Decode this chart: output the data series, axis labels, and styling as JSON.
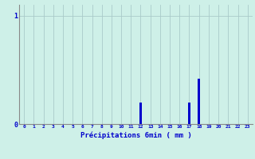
{
  "hours": [
    0,
    1,
    2,
    3,
    4,
    5,
    6,
    7,
    8,
    9,
    10,
    11,
    12,
    13,
    14,
    15,
    16,
    17,
    18,
    19,
    20,
    21,
    22,
    23
  ],
  "values": [
    0,
    0,
    0,
    0,
    0,
    0,
    0,
    0,
    0,
    0,
    0,
    0,
    0.2,
    0,
    0,
    0,
    0,
    0.2,
    0.42,
    0,
    0,
    0,
    0,
    0
  ],
  "bar_color": "#0000cc",
  "bg_color": "#cef0e8",
  "grid_color": "#aacaca",
  "axis_color": "#888888",
  "text_color": "#0000cc",
  "xlabel": "Précipitations 6min ( mm )",
  "ylim": [
    0,
    1.1
  ],
  "xlim": [
    -0.5,
    23.5
  ],
  "figsize": [
    3.2,
    2.0
  ],
  "dpi": 100
}
